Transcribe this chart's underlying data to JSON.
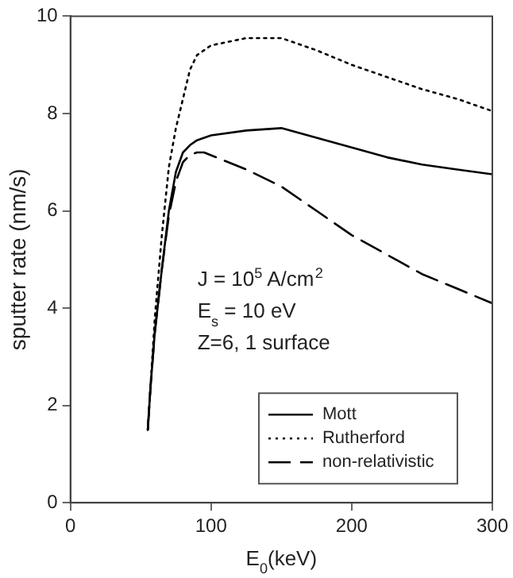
{
  "chart_data": {
    "type": "line",
    "xlabel": "E$_{0}$(keV)",
    "ylabel": "sputter rate (nm/s)",
    "xlim": [
      0,
      300
    ],
    "xticks": [
      0,
      100,
      200,
      300
    ],
    "ylim": [
      0,
      10
    ],
    "yticks": [
      0,
      2,
      4,
      6,
      8,
      10
    ],
    "grid": false,
    "legend": "bottom right",
    "marker": "none",
    "annotations": [
      "J = 10$^{5}$ A/cm$^{2}$",
      "E$_{s}$ = 10 eV",
      "Z=6, 1 surface"
    ],
    "series": [
      {
        "name": "Mott",
        "color": "#000000",
        "line_style": "solid",
        "x": [
          55,
          57,
          60,
          65,
          70,
          75,
          80,
          85,
          90,
          100,
          125,
          150,
          175,
          200,
          225,
          250,
          275,
          300
        ],
        "values": [
          1.5,
          2.4,
          3.5,
          4.8,
          6.0,
          6.8,
          7.2,
          7.35,
          7.45,
          7.55,
          7.65,
          7.7,
          7.5,
          7.3,
          7.1,
          6.95,
          6.85,
          6.75
        ]
      },
      {
        "name": "Rutherford",
        "color": "#000000",
        "line_style": "dotted",
        "x": [
          55,
          60,
          65,
          70,
          75,
          80,
          85,
          90,
          100,
          125,
          150,
          175,
          200,
          225,
          250,
          275,
          300
        ],
        "values": [
          1.5,
          3.8,
          5.5,
          6.9,
          7.7,
          8.3,
          8.9,
          9.2,
          9.4,
          9.55,
          9.55,
          9.3,
          9.0,
          8.75,
          8.5,
          8.3,
          8.05
        ]
      },
      {
        "name": "non-relativistic",
        "color": "#000000",
        "line_style": "dashed",
        "x": [
          55,
          57,
          60,
          65,
          70,
          75,
          80,
          85,
          90,
          95,
          125,
          150,
          175,
          200,
          225,
          250,
          275,
          300
        ],
        "values": [
          1.5,
          2.4,
          3.5,
          4.8,
          5.9,
          6.6,
          7.0,
          7.15,
          7.2,
          7.2,
          6.85,
          6.5,
          6.0,
          5.5,
          5.1,
          4.7,
          4.4,
          4.1
        ]
      }
    ]
  }
}
